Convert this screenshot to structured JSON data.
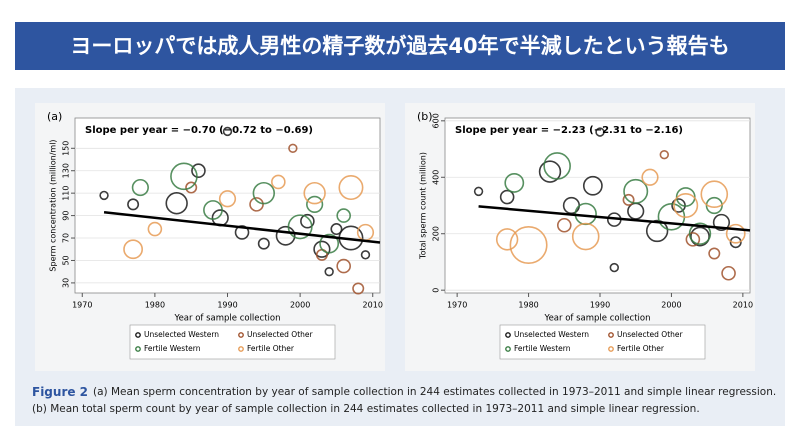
{
  "header": {
    "title": "ヨーロッパでは成人男性の精子数が過去40年で半減したという報告も"
  },
  "chart_data": [
    {
      "type": "scatter",
      "panel_label": "(a)",
      "annotation": "Slope per year = −0.70 (−0.72 to −0.69)",
      "x_label": "Year of sample collection",
      "y_label": "Sperm concentration (million/ml)",
      "xlim": [
        1969,
        2011
      ],
      "ylim": [
        21,
        177
      ],
      "xticks": [
        1970,
        1980,
        1990,
        2000,
        2010
      ],
      "yticks": [
        30,
        50,
        70,
        90,
        110,
        130,
        150
      ],
      "legend": "bottom",
      "series": [
        {
          "name": "Unselected Western",
          "color": "#1a1a1a",
          "x": [
            1973,
            1977,
            1983,
            1986,
            1989,
            1992,
            1995,
            1998,
            2001,
            2003,
            2005,
            2007,
            2009,
            1990,
            2004
          ],
          "values": [
            108,
            100,
            101,
            130,
            88,
            75,
            65,
            72,
            85,
            60,
            78,
            70,
            55,
            165,
            40
          ],
          "sizes": [
            3,
            4,
            8,
            5,
            6,
            5,
            4,
            7,
            5,
            6,
            4,
            9,
            3,
            3,
            3
          ]
        },
        {
          "name": "Unselected Other",
          "color": "#a0522d",
          "x": [
            1985,
            1994,
            1999,
            2003,
            2006,
            2008
          ],
          "values": [
            115,
            100,
            150,
            55,
            45,
            25
          ],
          "sizes": [
            4,
            5,
            3,
            4,
            5,
            4
          ]
        },
        {
          "name": "Fertile Western",
          "color": "#3a7d44",
          "x": [
            1978,
            1984,
            1988,
            1995,
            2000,
            2002,
            2004,
            2006
          ],
          "values": [
            115,
            125,
            95,
            110,
            80,
            100,
            65,
            90
          ],
          "sizes": [
            6,
            10,
            7,
            8,
            9,
            6,
            7,
            5
          ]
        },
        {
          "name": "Fertile Other",
          "color": "#e69b55",
          "x": [
            1977,
            1980,
            1990,
            1997,
            2002,
            2007,
            2009
          ],
          "values": [
            60,
            78,
            105,
            120,
            110,
            115,
            75
          ],
          "sizes": [
            7,
            5,
            6,
            5,
            8,
            9,
            6
          ]
        }
      ],
      "fit": {
        "color": "#000000",
        "x": [
          1973,
          2011
        ],
        "values": [
          93,
          66
        ]
      }
    },
    {
      "type": "scatter",
      "panel_label": "(b)",
      "annotation": "Slope per year = −2.23 (−2.31 to −2.16)",
      "x_label": "Year of sample collection",
      "y_label": "Total sperm count (million)",
      "xlim": [
        1968.3,
        2011
      ],
      "ylim": [
        -10,
        610
      ],
      "xticks": [
        1970,
        1980,
        1990,
        2000,
        2010
      ],
      "yticks": [
        0,
        200,
        400,
        600
      ],
      "legend": "bottom",
      "series": [
        {
          "name": "Unselected Western",
          "color": "#1a1a1a",
          "x": [
            1973,
            1977,
            1983,
            1986,
            1989,
            1992,
            1995,
            1998,
            2001,
            2004,
            2007,
            2009,
            1990,
            1992
          ],
          "values": [
            350,
            330,
            420,
            300,
            370,
            250,
            280,
            210,
            300,
            190,
            240,
            170,
            560,
            80
          ],
          "sizes": [
            3,
            5,
            8,
            6,
            7,
            5,
            6,
            8,
            5,
            7,
            6,
            4,
            3,
            3
          ]
        },
        {
          "name": "Unselected Other",
          "color": "#a0522d",
          "x": [
            1985,
            1994,
            1999,
            2003,
            2006,
            2008
          ],
          "values": [
            230,
            320,
            480,
            180,
            130,
            60
          ],
          "sizes": [
            5,
            4,
            3,
            5,
            4,
            5
          ]
        },
        {
          "name": "Fertile Western",
          "color": "#3a7d44",
          "x": [
            1978,
            1984,
            1988,
            1995,
            2000,
            2002,
            2004,
            2006
          ],
          "values": [
            380,
            440,
            270,
            350,
            260,
            330,
            200,
            300
          ],
          "sizes": [
            7,
            10,
            8,
            9,
            10,
            7,
            8,
            6
          ]
        },
        {
          "name": "Fertile Other",
          "color": "#e69b55",
          "x": [
            1977,
            1980,
            1988,
            1997,
            2002,
            2006,
            2009
          ],
          "values": [
            180,
            160,
            190,
            400,
            300,
            340,
            200
          ],
          "sizes": [
            8,
            14,
            10,
            6,
            9,
            10,
            7
          ]
        }
      ],
      "fit": {
        "color": "#000000",
        "x": [
          1973,
          2011
        ],
        "values": [
          297,
          212
        ]
      }
    }
  ],
  "caption": {
    "label": "Figure 2",
    "lines": [
      "(a) Mean sperm concentration by year of sample collection in 244 estimates collected in 1973–2011 and simple linear regression.",
      "(b) Mean total sperm count by year of sample collection in 244 estimates collected in 1973–2011 and simple linear regression."
    ]
  }
}
